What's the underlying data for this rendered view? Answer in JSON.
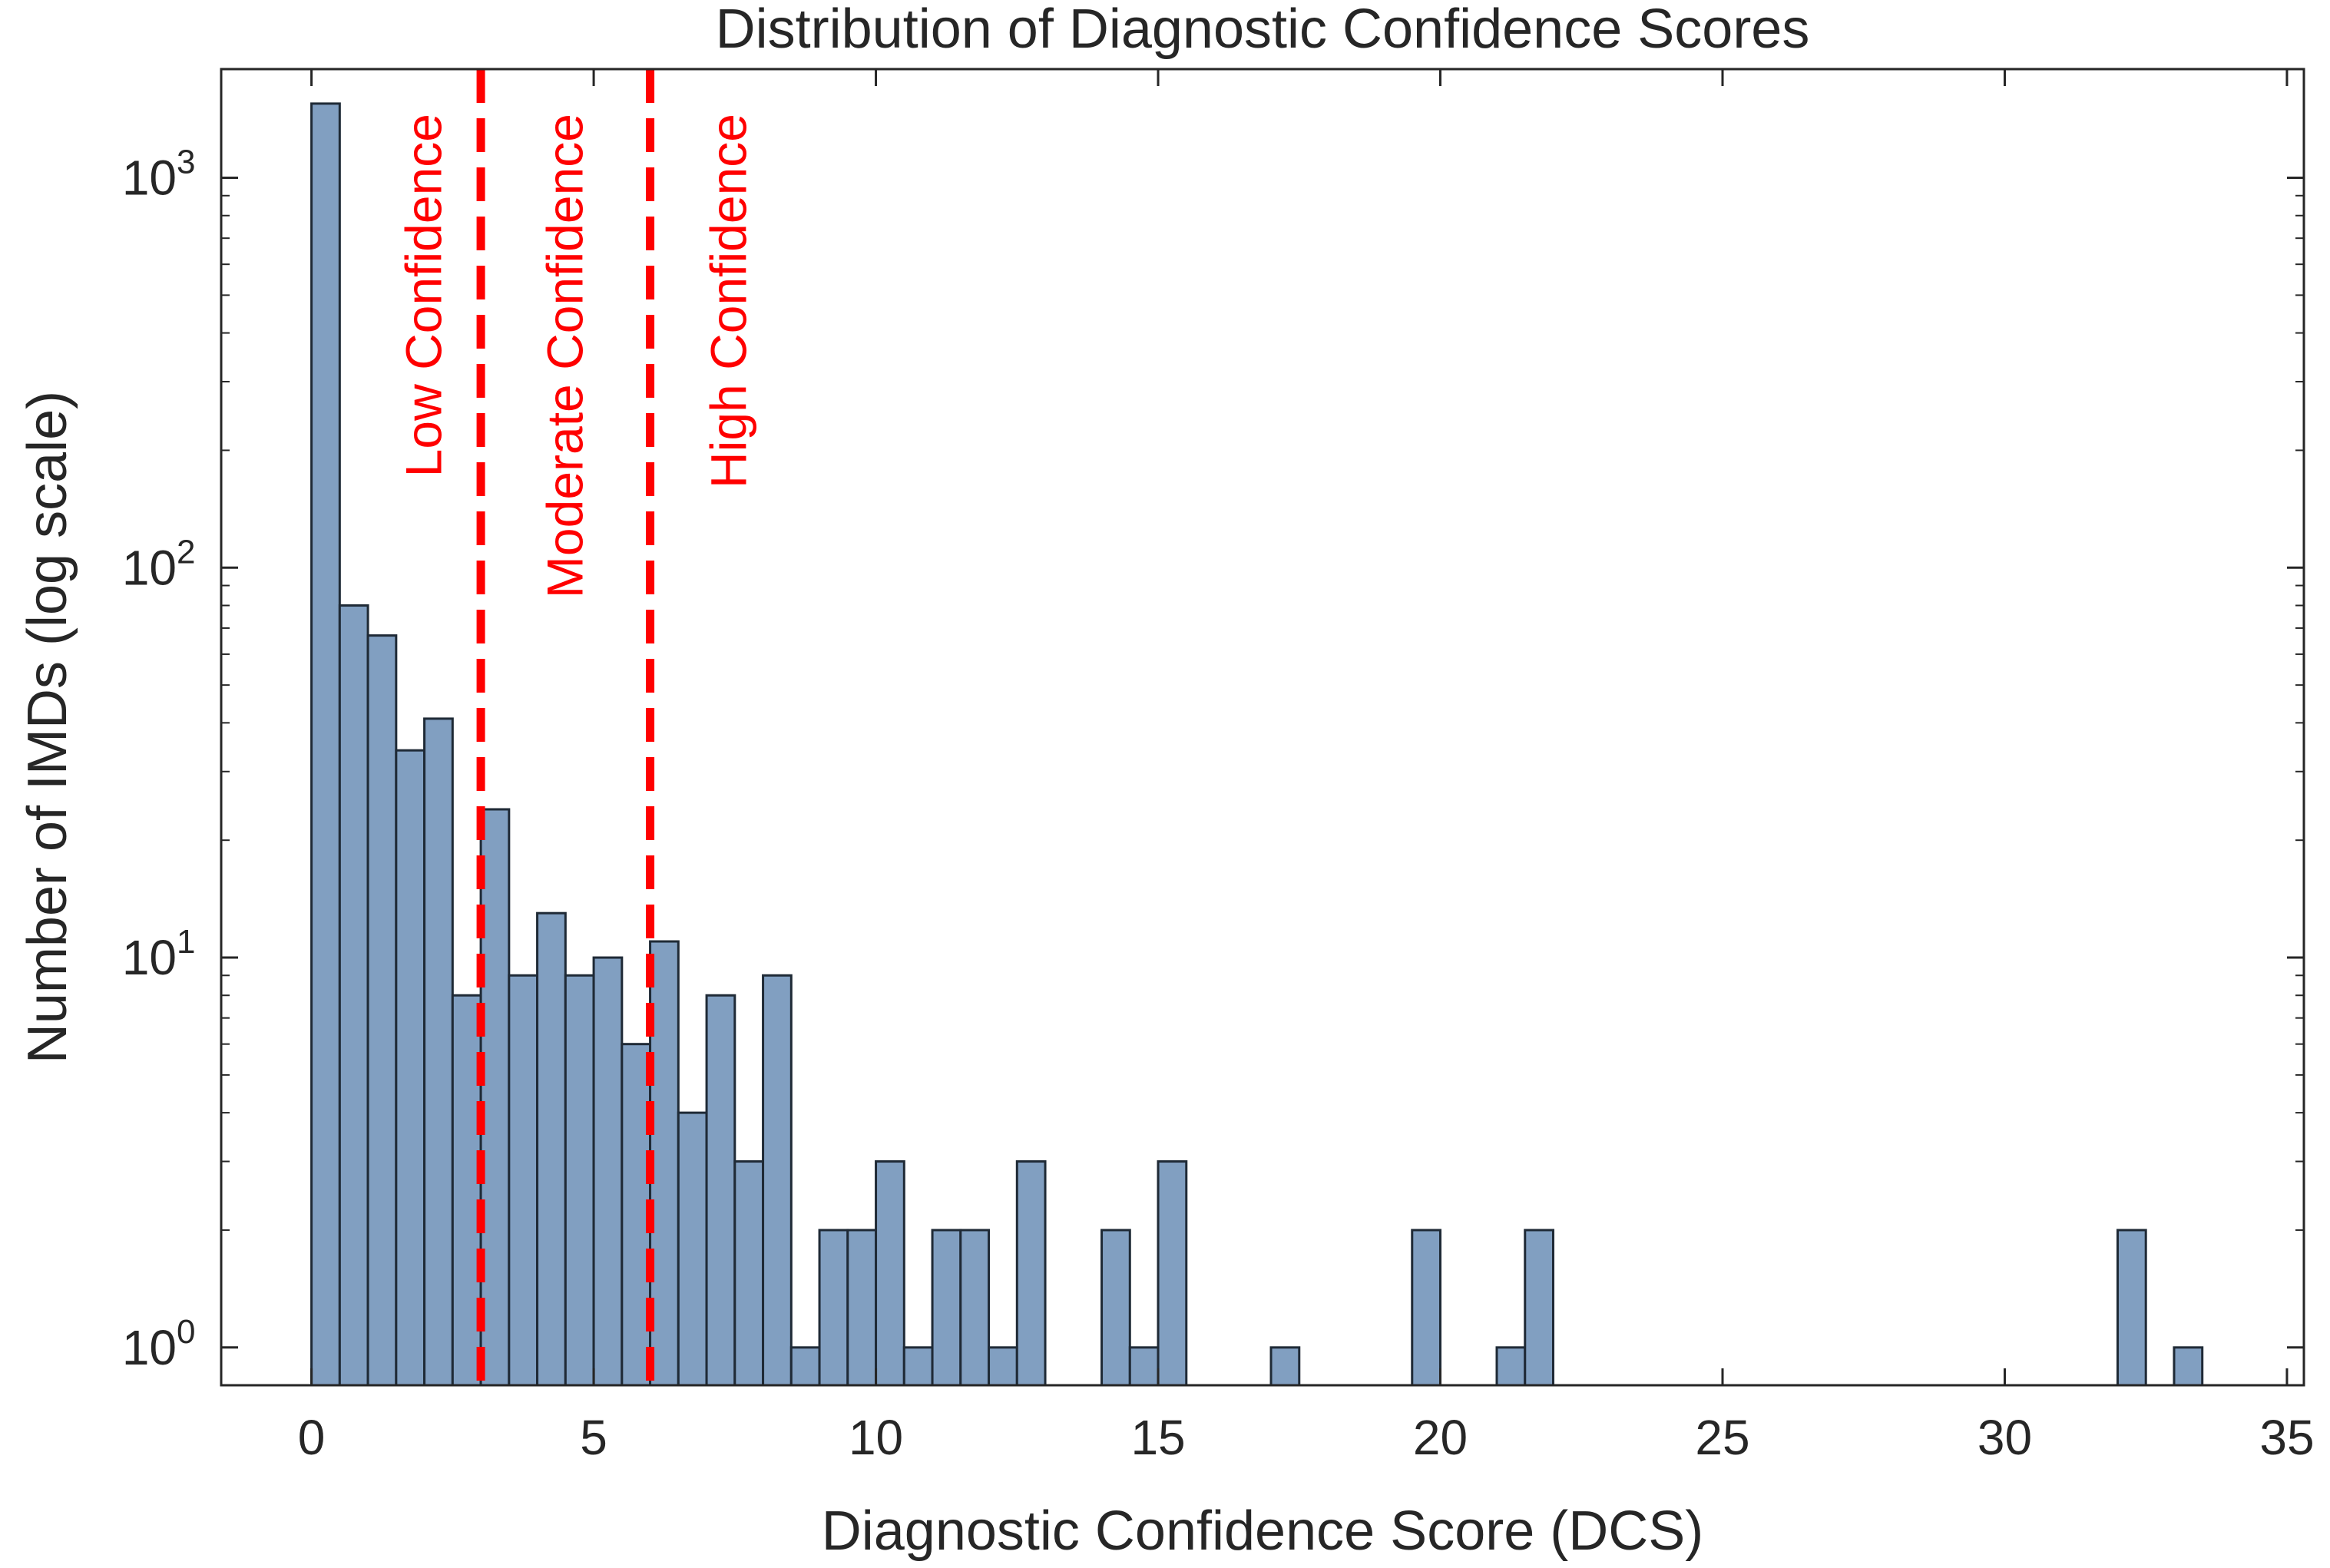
{
  "chart_data": {
    "type": "bar",
    "title": "Distribution of Diagnostic Confidence Scores",
    "xlabel": "Diagnostic Confidence Score (DCS)",
    "ylabel": "Number of IMDs (log scale)",
    "y_scale": "log",
    "xlim": [
      -1.6,
      35.3
    ],
    "ylim": [
      0.8,
      1900
    ],
    "x_ticks": [
      0,
      5,
      10,
      15,
      20,
      25,
      30,
      35
    ],
    "x_tick_labels": [
      "0",
      "5",
      "10",
      "15",
      "20",
      "25",
      "30",
      "35"
    ],
    "y_ticks": [
      1,
      10,
      100,
      1000
    ],
    "y_tick_labels": [
      {
        "base": "10",
        "exp": "0"
      },
      {
        "base": "10",
        "exp": "1"
      },
      {
        "base": "10",
        "exp": "2"
      },
      {
        "base": "10",
        "exp": "3"
      }
    ],
    "grid": false,
    "bin_width": 0.5,
    "bar_color": "#819fc1",
    "bar_edge_color": "#1f2a36",
    "bins": [
      {
        "x0": 0.0,
        "count": 1550
      },
      {
        "x0": 0.5,
        "count": 80
      },
      {
        "x0": 1.0,
        "count": 67
      },
      {
        "x0": 1.5,
        "count": 34
      },
      {
        "x0": 2.0,
        "count": 41
      },
      {
        "x0": 2.5,
        "count": 8
      },
      {
        "x0": 3.0,
        "count": 24
      },
      {
        "x0": 3.5,
        "count": 9
      },
      {
        "x0": 4.0,
        "count": 13
      },
      {
        "x0": 4.5,
        "count": 9
      },
      {
        "x0": 5.0,
        "count": 10
      },
      {
        "x0": 5.5,
        "count": 6
      },
      {
        "x0": 6.0,
        "count": 11
      },
      {
        "x0": 6.5,
        "count": 4
      },
      {
        "x0": 7.0,
        "count": 8
      },
      {
        "x0": 7.5,
        "count": 3
      },
      {
        "x0": 8.0,
        "count": 9
      },
      {
        "x0": 8.5,
        "count": 1
      },
      {
        "x0": 9.0,
        "count": 2
      },
      {
        "x0": 9.5,
        "count": 2
      },
      {
        "x0": 10.0,
        "count": 3
      },
      {
        "x0": 10.5,
        "count": 1
      },
      {
        "x0": 11.0,
        "count": 2
      },
      {
        "x0": 11.5,
        "count": 2
      },
      {
        "x0": 12.0,
        "count": 1
      },
      {
        "x0": 12.5,
        "count": 3
      },
      {
        "x0": 14.0,
        "count": 2
      },
      {
        "x0": 14.5,
        "count": 1
      },
      {
        "x0": 15.0,
        "count": 3
      },
      {
        "x0": 17.0,
        "count": 1
      },
      {
        "x0": 19.5,
        "count": 2
      },
      {
        "x0": 21.0,
        "count": 1
      },
      {
        "x0": 21.5,
        "count": 2
      },
      {
        "x0": 32.0,
        "count": 2
      },
      {
        "x0": 33.0,
        "count": 1
      }
    ],
    "thresholds": [
      {
        "x": 3,
        "color": "#ff0000",
        "style": "dashed"
      },
      {
        "x": 6,
        "color": "#ff0000",
        "style": "dashed"
      }
    ],
    "region_labels": [
      {
        "text": "Low Confidence",
        "x": 2.3,
        "color": "#ff0000"
      },
      {
        "text": "Moderate Confidence",
        "x": 4.8,
        "color": "#ff0000"
      },
      {
        "text": "High Confidence",
        "x": 7.7,
        "color": "#ff0000"
      }
    ]
  }
}
